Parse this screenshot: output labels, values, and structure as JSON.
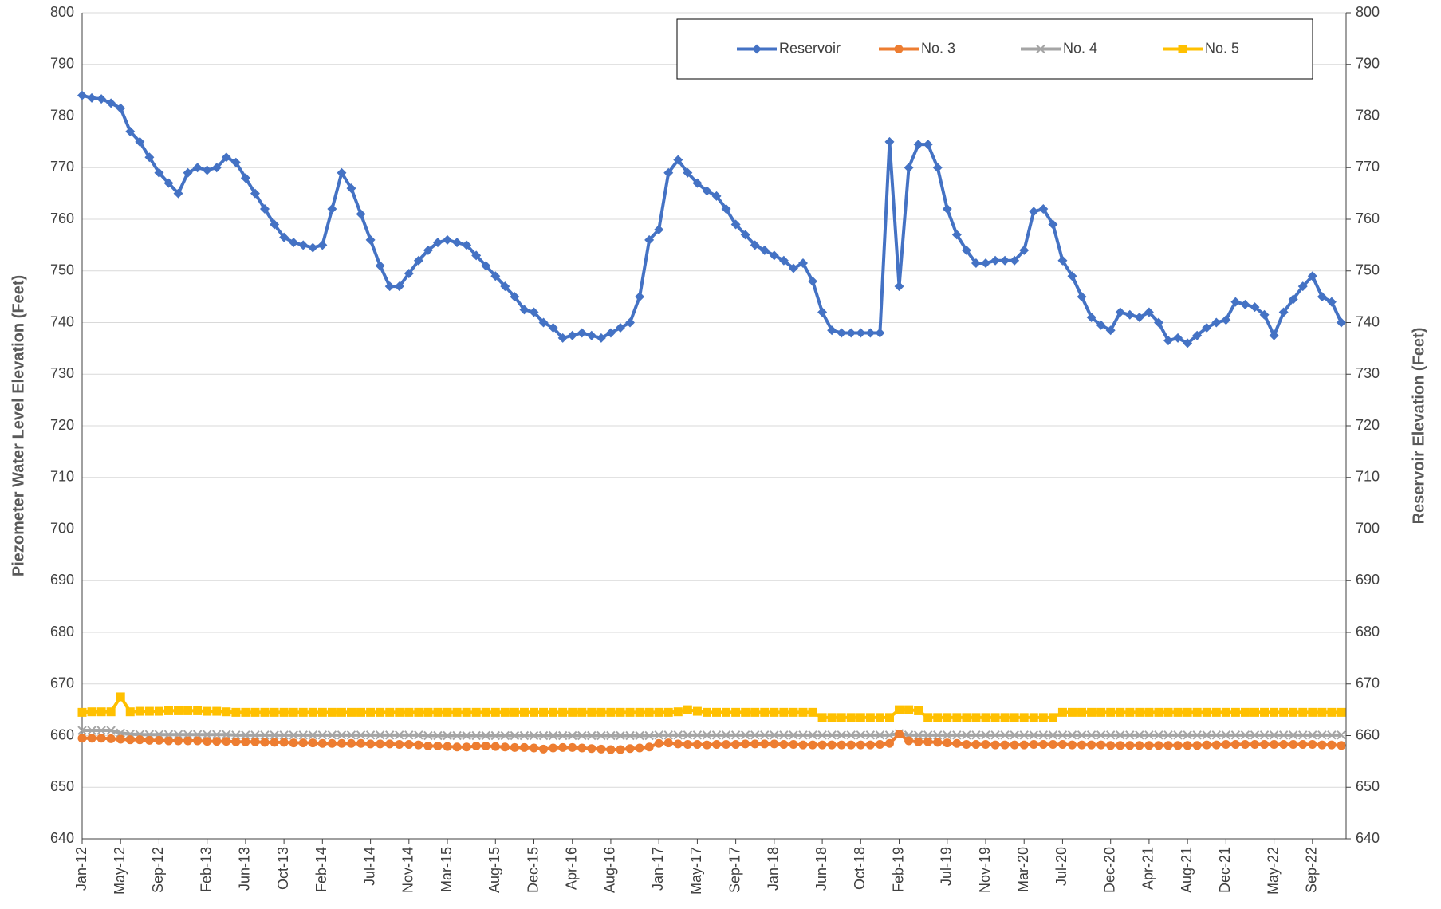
{
  "chart_data": {
    "type": "line",
    "y_label": "Piezometer Water Level Elevation (Feet)",
    "y2_label": "Reservoir Elevation (Feet)",
    "x": [
      "Jan-12",
      "Feb-12",
      "Mar-12",
      "Apr-12",
      "May-12",
      "Jun-12",
      "Jul-12",
      "Aug-12",
      "Sep-12",
      "Oct-12",
      "Nov-12",
      "Dec-12",
      "Jan-13",
      "Feb-13",
      "Mar-13",
      "Apr-13",
      "May-13",
      "Jun-13",
      "Jul-13",
      "Aug-13",
      "Sep-13",
      "Oct-13",
      "Nov-13",
      "Dec-13",
      "Jan-14",
      "Feb-14",
      "Mar-14",
      "Apr-14",
      "May-14",
      "Jun-14",
      "Jul-14",
      "Aug-14",
      "Sep-14",
      "Oct-14",
      "Nov-14",
      "Dec-14",
      "Jan-15",
      "Feb-15",
      "Mar-15",
      "Apr-15",
      "May-15",
      "Jun-15",
      "Jul-15",
      "Aug-15",
      "Sep-15",
      "Oct-15",
      "Nov-15",
      "Dec-15",
      "Jan-16",
      "Feb-16",
      "Mar-16",
      "Apr-16",
      "May-16",
      "Jun-16",
      "Jul-16",
      "Aug-16",
      "Sep-16",
      "Oct-16",
      "Nov-16",
      "Dec-16",
      "Jan-17",
      "Feb-17",
      "Mar-17",
      "Apr-17",
      "May-17",
      "Jun-17",
      "Jul-17",
      "Aug-17",
      "Sep-17",
      "Oct-17",
      "Nov-17",
      "Dec-17",
      "Jan-18",
      "Feb-18",
      "Mar-18",
      "Apr-18",
      "May-18",
      "Jun-18",
      "Jul-18",
      "Aug-18",
      "Sep-18",
      "Oct-18",
      "Nov-18",
      "Dec-18",
      "Jan-19",
      "Feb-19",
      "Mar-19",
      "Apr-19",
      "May-19",
      "Jun-19",
      "Jul-19",
      "Aug-19",
      "Sep-19",
      "Oct-19",
      "Nov-19",
      "Dec-19",
      "Jan-20",
      "Feb-20",
      "Mar-20",
      "Apr-20",
      "May-20",
      "Jun-20",
      "Jul-20",
      "Aug-20",
      "Sep-20",
      "Oct-20",
      "Nov-20",
      "Dec-20",
      "Jan-21",
      "Feb-21",
      "Mar-21",
      "Apr-21",
      "May-21",
      "Jun-21",
      "Jul-21",
      "Aug-21",
      "Sep-21",
      "Oct-21",
      "Nov-21",
      "Dec-21",
      "Jan-22",
      "Feb-22",
      "Mar-22",
      "Apr-22",
      "May-22",
      "Jun-22",
      "Jul-22",
      "Aug-22",
      "Sep-22",
      "Oct-22",
      "Nov-22",
      "Dec-22"
    ],
    "xticks": [
      "Jan-12",
      "May-12",
      "Sep-12",
      "Feb-13",
      "Jun-13",
      "Oct-13",
      "Feb-14",
      "Jul-14",
      "Nov-14",
      "Mar-15",
      "Aug-15",
      "Dec-15",
      "Apr-16",
      "Aug-16",
      "Jan-17",
      "May-17",
      "Sep-17",
      "Jan-18",
      "Jun-18",
      "Oct-18",
      "Feb-19",
      "Jul-19",
      "Nov-19",
      "Mar-20",
      "Jul-20",
      "Dec-20",
      "Apr-21",
      "Aug-21",
      "Dec-21",
      "May-22",
      "Sep-22"
    ],
    "ylim": [
      640,
      800
    ],
    "yticks": [
      640,
      650,
      660,
      670,
      680,
      690,
      700,
      710,
      720,
      730,
      740,
      750,
      760,
      770,
      780,
      790,
      800
    ],
    "y2lim": [
      640,
      800
    ],
    "y2ticks": [
      640,
      650,
      660,
      670,
      680,
      690,
      700,
      710,
      720,
      730,
      740,
      750,
      760,
      770,
      780,
      790,
      800
    ],
    "grid": true,
    "legend": "top-right",
    "series": [
      {
        "name": "Reservoir",
        "color": "#4472c4",
        "marker": "diamond",
        "axis": "y2",
        "values": [
          784,
          783.5,
          783.3,
          782.5,
          781.5,
          777,
          775,
          772,
          769,
          767,
          765,
          769,
          770,
          769.5,
          770,
          772,
          771,
          768,
          765,
          762,
          759,
          756.5,
          755.5,
          755,
          754.5,
          755,
          762,
          769,
          766,
          761,
          756,
          751,
          747,
          747,
          749.5,
          752,
          754,
          755.5,
          756,
          755.5,
          755,
          753,
          751,
          749,
          747,
          745,
          742.5,
          742,
          740,
          739,
          737,
          737.5,
          738,
          737.5,
          737,
          738,
          739,
          740,
          745,
          756,
          758,
          769,
          771.5,
          769,
          767,
          765.5,
          764.5,
          762,
          759,
          757,
          755,
          754,
          753,
          752,
          750.5,
          751.5,
          748,
          742,
          738.5,
          738,
          738,
          738,
          738,
          738,
          775,
          747,
          770,
          774.5,
          774.5,
          770,
          762,
          757,
          754,
          751.5,
          751.5,
          752,
          752,
          752,
          754,
          761.5,
          762,
          759,
          752,
          749,
          745,
          741,
          739.5,
          738.5,
          742,
          741.5,
          741,
          742,
          740,
          736.5,
          737,
          736,
          737.5,
          739,
          740,
          740.5,
          744,
          743.5,
          743,
          741.5,
          737.5,
          742,
          744.5,
          747,
          749,
          745,
          744,
          740
        ]
      },
      {
        "name": "No. 3",
        "color": "#ed7d31",
        "marker": "circle",
        "values": [
          659.5,
          659.5,
          659.5,
          659.4,
          659.3,
          659.2,
          659.2,
          659.1,
          659.1,
          659,
          659,
          659,
          659,
          658.9,
          658.9,
          658.9,
          658.8,
          658.8,
          658.8,
          658.7,
          658.7,
          658.7,
          658.6,
          658.6,
          658.6,
          658.5,
          658.5,
          658.5,
          658.5,
          658.5,
          658.4,
          658.4,
          658.4,
          658.3,
          658.3,
          658.2,
          658,
          658,
          657.9,
          657.8,
          657.8,
          658,
          658,
          657.9,
          657.8,
          657.7,
          657.7,
          657.6,
          657.4,
          657.6,
          657.7,
          657.7,
          657.6,
          657.5,
          657.4,
          657.3,
          657.3,
          657.5,
          657.6,
          657.8,
          658.5,
          658.6,
          658.4,
          658.3,
          658.3,
          658.2,
          658.3,
          658.3,
          658.3,
          658.4,
          658.4,
          658.4,
          658.4,
          658.3,
          658.3,
          658.2,
          658.2,
          658.2,
          658.2,
          658.2,
          658.2,
          658.2,
          658.2,
          658.3,
          658.5,
          660.3,
          659,
          658.8,
          658.8,
          658.7,
          658.6,
          658.5,
          658.3,
          658.3,
          658.3,
          658.2,
          658.2,
          658.2,
          658.2,
          658.3,
          658.3,
          658.3,
          658.3,
          658.2,
          658.2,
          658.2,
          658.2,
          658.1,
          658.1,
          658.1,
          658.1,
          658.1,
          658.1,
          658.1,
          658.1,
          658.1,
          658.1,
          658.2,
          658.2,
          658.3,
          658.3,
          658.3,
          658.3,
          658.3,
          658.3,
          658.3,
          658.3,
          658.3,
          658.3,
          658.2,
          658.2,
          658.1
        ]
      },
      {
        "name": "No. 4",
        "color": "#a5a5a5",
        "marker": "x",
        "values": [
          661,
          661,
          661,
          661,
          660.5,
          660.3,
          660.2,
          660.2,
          660.2,
          660.2,
          660.2,
          660.2,
          660.2,
          660.2,
          660.2,
          660.2,
          660.1,
          660.1,
          660.1,
          660.1,
          660.1,
          660.1,
          660.1,
          660.1,
          660.1,
          660.1,
          660.1,
          660.1,
          660.1,
          660.1,
          660.1,
          660.1,
          660.1,
          660.1,
          660.1,
          660.1,
          660,
          660,
          660,
          660,
          660,
          660,
          660,
          660,
          660,
          660,
          660,
          660,
          660,
          660,
          660,
          660,
          660,
          660,
          660,
          660,
          660,
          660,
          660,
          660,
          660.1,
          660.1,
          660.1,
          660.1,
          660.1,
          660.1,
          660.1,
          660.1,
          660.1,
          660.1,
          660.1,
          660.1,
          660.1,
          660.1,
          660.1,
          660.1,
          660.1,
          660.1,
          660.1,
          660.1,
          660.1,
          660.1,
          660.1,
          660.1,
          660.1,
          660.4,
          660.1,
          660.1,
          660.1,
          660.1,
          660.1,
          660.1,
          660.1,
          660.1,
          660.1,
          660.1,
          660.1,
          660.1,
          660.1,
          660.1,
          660.1,
          660.1,
          660.1,
          660.1,
          660.1,
          660.1,
          660.1,
          660.1,
          660.1,
          660.1,
          660.1,
          660.1,
          660.1,
          660.1,
          660.1,
          660.1,
          660.1,
          660.1,
          660.1,
          660.1,
          660.1,
          660.1,
          660.1,
          660.1,
          660.1,
          660.1,
          660.1,
          660.1,
          660.1,
          660.1,
          660.1,
          660.1
        ]
      },
      {
        "name": "No. 5",
        "color": "#ffc000",
        "marker": "square",
        "values": [
          664.5,
          664.6,
          664.6,
          664.6,
          667.5,
          664.6,
          664.7,
          664.7,
          664.7,
          664.8,
          664.8,
          664.8,
          664.8,
          664.7,
          664.7,
          664.6,
          664.5,
          664.5,
          664.5,
          664.5,
          664.5,
          664.5,
          664.5,
          664.5,
          664.5,
          664.5,
          664.5,
          664.5,
          664.5,
          664.5,
          664.5,
          664.5,
          664.5,
          664.5,
          664.5,
          664.5,
          664.5,
          664.5,
          664.5,
          664.5,
          664.5,
          664.5,
          664.5,
          664.5,
          664.5,
          664.5,
          664.5,
          664.5,
          664.5,
          664.5,
          664.5,
          664.5,
          664.5,
          664.5,
          664.5,
          664.5,
          664.5,
          664.5,
          664.5,
          664.5,
          664.5,
          664.5,
          664.6,
          665,
          664.7,
          664.5,
          664.5,
          664.5,
          664.5,
          664.5,
          664.5,
          664.5,
          664.5,
          664.5,
          664.5,
          664.5,
          664.5,
          663.5,
          663.5,
          663.5,
          663.5,
          663.5,
          663.5,
          663.5,
          663.5,
          665,
          665,
          664.8,
          663.5,
          663.5,
          663.5,
          663.5,
          663.5,
          663.5,
          663.5,
          663.5,
          663.5,
          663.5,
          663.5,
          663.5,
          663.5,
          663.5,
          664.5,
          664.5,
          664.5,
          664.5,
          664.5,
          664.5,
          664.5,
          664.5,
          664.5,
          664.5,
          664.5,
          664.5,
          664.5,
          664.5,
          664.5,
          664.5,
          664.5,
          664.5,
          664.5,
          664.5,
          664.5,
          664.5,
          664.5,
          664.5,
          664.5,
          664.5,
          664.5,
          664.5,
          664.5,
          664.5
        ]
      }
    ]
  }
}
